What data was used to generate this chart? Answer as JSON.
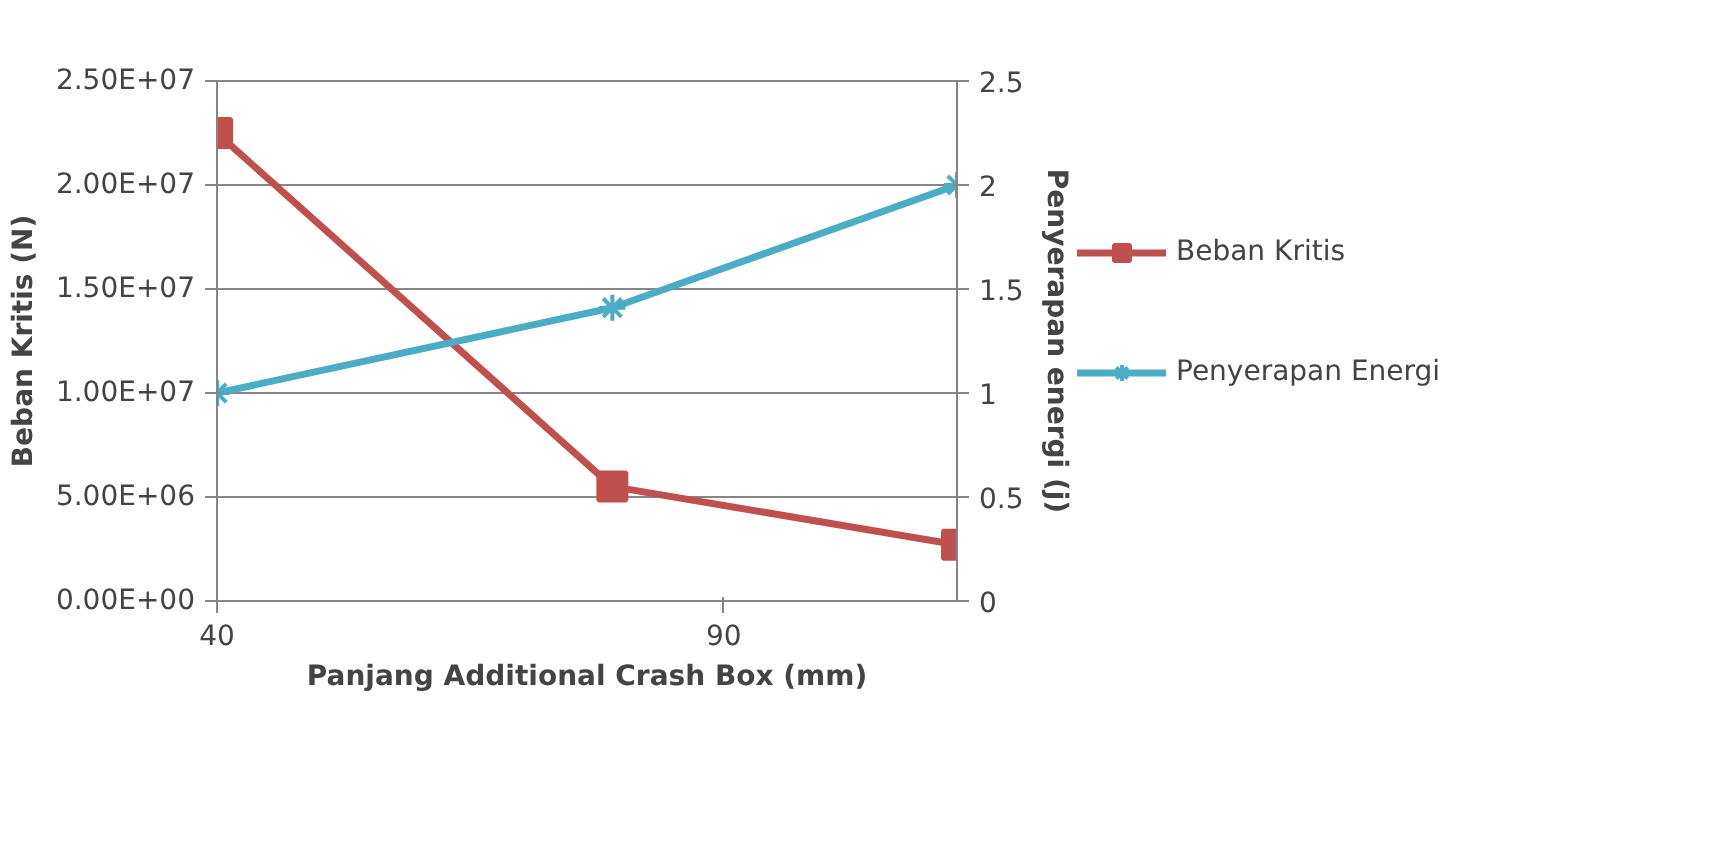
{
  "chart_data": {
    "type": "line",
    "xlabel": "Panjang Additional Crash Box (mm)",
    "ylabel": "Beban Kritis (N)",
    "y2label": "Penyerapan energi (j)",
    "x": [
      40,
      79,
      113
    ],
    "series": [
      {
        "name": "Beban Kritis",
        "color": "#c0504d",
        "values": [
          22500000,
          5500000,
          2700000
        ],
        "marker": "square"
      },
      {
        "name": "Penyerapan Energi",
        "color": "#4bacc6",
        "values": [
          1.0,
          1.41,
          2.0
        ],
        "marker": "cross",
        "axis": "y2"
      }
    ],
    "xlim": [
      40,
      113
    ],
    "xticks": [
      40,
      90
    ],
    "ylim": [
      0,
      25000000
    ],
    "yticks": [
      {
        "value": 0,
        "label": "0.00E+00"
      },
      {
        "value": 5000000,
        "label": "5.00E+06"
      },
      {
        "value": 10000000,
        "label": "1.00E+07"
      },
      {
        "value": 15000000,
        "label": "1.50E+07"
      },
      {
        "value": 20000000,
        "label": "2.00E+07"
      },
      {
        "value": 25000000,
        "label": "2.50E+07"
      }
    ],
    "y2lim": [
      0,
      2.5
    ],
    "y2ticks": [
      0,
      0.5,
      1,
      1.5,
      2,
      2.5
    ],
    "grid": "y",
    "legend": "right"
  }
}
